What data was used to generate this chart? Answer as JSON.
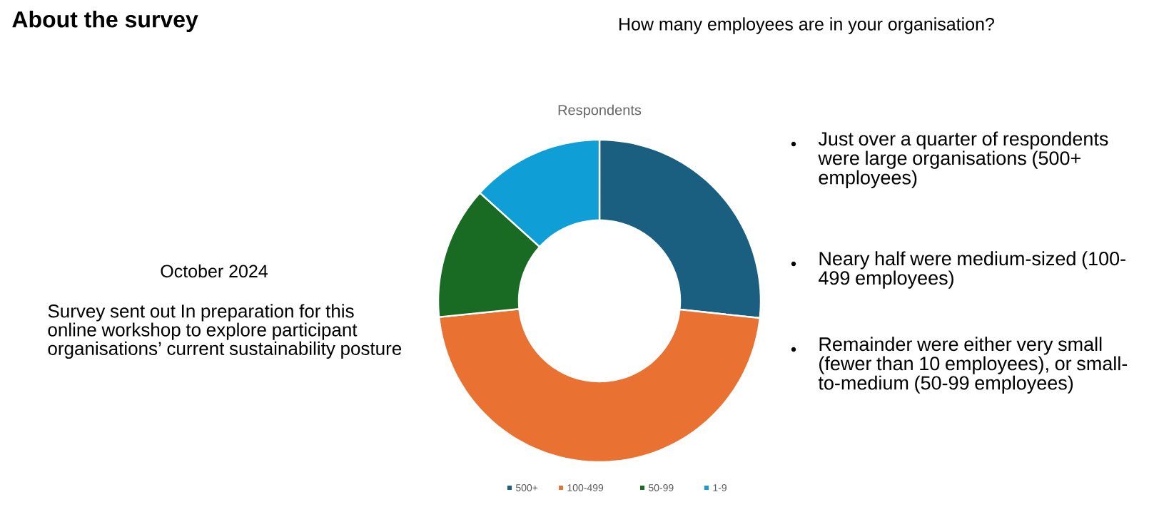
{
  "chart_data": {
    "type": "donut",
    "title": "About the survey",
    "subtitle": "How many employees are in your organisation?",
    "categories": [
      "500+",
      "100-499",
      "50-99",
      "1-9"
    ],
    "values": [
      26.7,
      46.7,
      13.3,
      13.3
    ],
    "colors": [
      "#1a5e80",
      "#e97132",
      "#196b24",
      "#0f9ed5"
    ],
    "legend": "bottom",
    "annotations": [
      "Respondents",
      "October 2024",
      "Survey sent out In preparation for this online workshop to explore participant organisations’ current sustainability posture",
      "Just over a quarter of respondents were large organisations  (500+ employees)",
      "Neary half were medium-sized (100-499 employees)",
      "Remainder were either very small (fewer than 10 employees), or small-to-medium (50-99 employees)"
    ]
  }
}
